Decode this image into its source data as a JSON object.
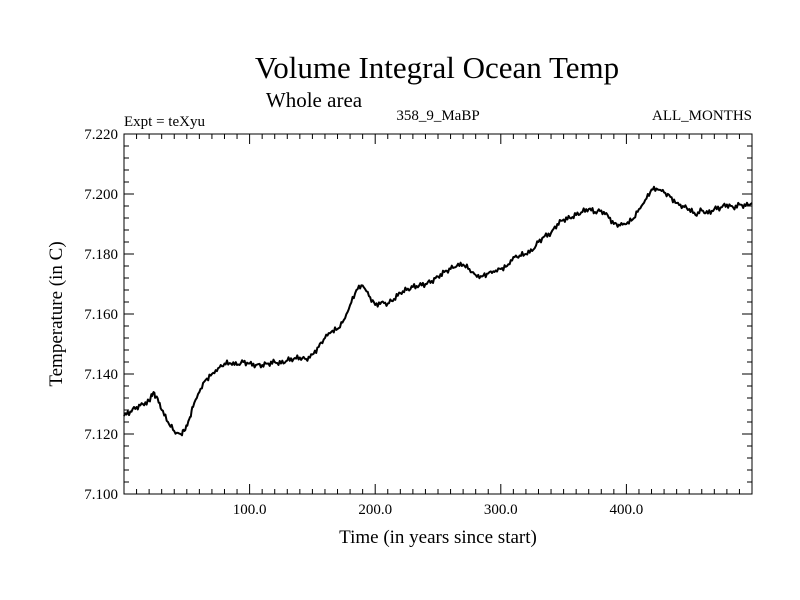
{
  "chart_data": {
    "type": "line",
    "title": "Volume Integral Ocean Temp",
    "subtitle": "Whole area",
    "annotations": {
      "left": "Expt = teXyu",
      "center": "358_9_MaBP",
      "right": "ALL_MONTHS"
    },
    "xlabel": "Time (in years since start)",
    "ylabel": "Temperature (in C)",
    "xlim": [
      0,
      500
    ],
    "ylim": [
      7.1,
      7.22
    ],
    "xticks": [
      100,
      200,
      300,
      400
    ],
    "xtick_labels": [
      "100.0",
      "200.0",
      "300.0",
      "400.0"
    ],
    "yticks": [
      7.1,
      7.12,
      7.14,
      7.16,
      7.18,
      7.2,
      7.22
    ],
    "ytick_labels": [
      "7.100",
      "7.120",
      "7.140",
      "7.160",
      "7.180",
      "7.200",
      "7.220"
    ],
    "grid": false,
    "line_color": "#000000",
    "series": [
      {
        "x": [
          0,
          5,
          10,
          15,
          20,
          23,
          26,
          30,
          35,
          40,
          45,
          48,
          52,
          55,
          60,
          65,
          70,
          75,
          80,
          85,
          90,
          95,
          100,
          105,
          110,
          115,
          120,
          125,
          130,
          135,
          140,
          145,
          150,
          155,
          160,
          165,
          170,
          175,
          180,
          185,
          190,
          195,
          200,
          205,
          210,
          215,
          220,
          225,
          230,
          235,
          240,
          245,
          250,
          255,
          260,
          265,
          270,
          275,
          280,
          285,
          290,
          295,
          300,
          305,
          310,
          315,
          320,
          325,
          330,
          335,
          340,
          345,
          350,
          355,
          360,
          365,
          370,
          375,
          380,
          385,
          390,
          395,
          400,
          405,
          410,
          415,
          420,
          425,
          430,
          435,
          440,
          445,
          450,
          455,
          460,
          465,
          470,
          475,
          480,
          485,
          490,
          495,
          500
        ],
        "y": [
          7.126,
          7.1275,
          7.129,
          7.13,
          7.131,
          7.1335,
          7.1325,
          7.128,
          7.124,
          7.121,
          7.12,
          7.121,
          7.125,
          7.129,
          7.134,
          7.138,
          7.14,
          7.142,
          7.1435,
          7.1435,
          7.143,
          7.144,
          7.1435,
          7.143,
          7.143,
          7.1435,
          7.144,
          7.1435,
          7.1445,
          7.145,
          7.1455,
          7.145,
          7.1465,
          7.149,
          7.152,
          7.154,
          7.155,
          7.158,
          7.163,
          7.168,
          7.1695,
          7.166,
          7.163,
          7.164,
          7.1635,
          7.165,
          7.167,
          7.168,
          7.169,
          7.1695,
          7.17,
          7.171,
          7.1725,
          7.174,
          7.175,
          7.176,
          7.1765,
          7.175,
          7.173,
          7.1725,
          7.1735,
          7.174,
          7.175,
          7.176,
          7.179,
          7.1795,
          7.18,
          7.181,
          7.184,
          7.186,
          7.187,
          7.19,
          7.1915,
          7.192,
          7.193,
          7.194,
          7.195,
          7.194,
          7.1945,
          7.193,
          7.19,
          7.1895,
          7.19,
          7.1915,
          7.195,
          7.198,
          7.2015,
          7.2015,
          7.2005,
          7.199,
          7.197,
          7.196,
          7.195,
          7.193,
          7.1945,
          7.1935,
          7.195,
          7.1955,
          7.1965,
          7.1955,
          7.1965,
          7.196,
          7.197
        ]
      }
    ]
  }
}
